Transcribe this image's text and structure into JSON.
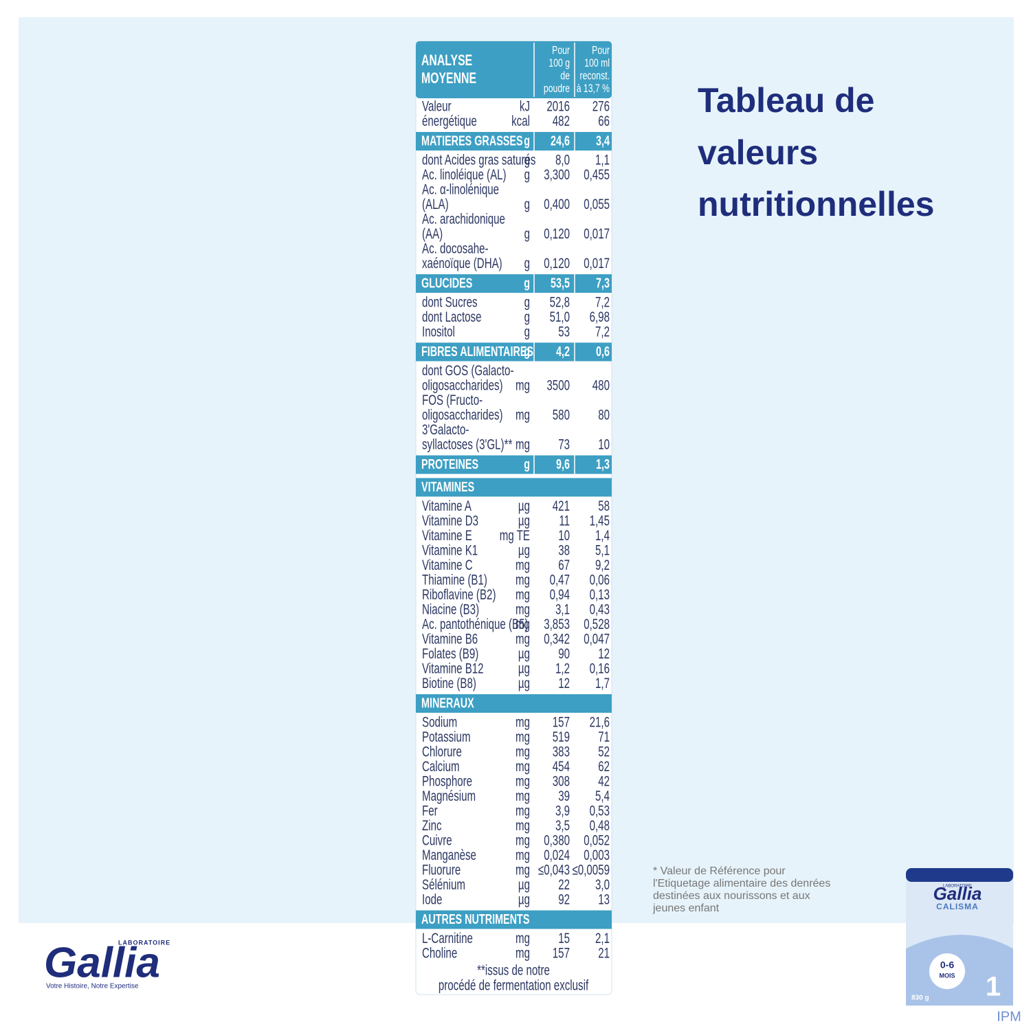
{
  "title": [
    "Tableau de",
    "valeurs",
    "nutritionnelles"
  ],
  "table": {
    "header": {
      "title": [
        "ANALYSE",
        "MOYENNE"
      ],
      "col1": [
        "Pour",
        "100 g",
        "de",
        "poudre"
      ],
      "col2": [
        "Pour",
        "100 ml",
        "reconst.",
        "à 13,7 %"
      ]
    },
    "sections": [
      {
        "rows": [
          {
            "label": [
              "Valeur"
            ],
            "unit": "kJ",
            "v1": "2016",
            "v2": "276"
          },
          {
            "label": [
              "énergétique"
            ],
            "unit": "kcal",
            "v1": "482",
            "v2": "66"
          }
        ]
      },
      {
        "heading": "MATIERES GRASSES",
        "unit": "g",
        "v1": "24,6",
        "v2": "3,4",
        "rows": [
          {
            "label": [
              "dont Acides gras saturés"
            ],
            "unit": "g",
            "v1": "8,0",
            "v2": "1,1"
          },
          {
            "label": [
              "Ac. linoléique (AL)"
            ],
            "unit": "g",
            "v1": "3,300",
            "v2": "0,455"
          },
          {
            "label": [
              "Ac. α-linolénique",
              "(ALA)"
            ],
            "unit": "g",
            "v1": "0,400",
            "v2": "0,055"
          },
          {
            "label": [
              "Ac. arachidonique",
              "(AA)"
            ],
            "unit": "g",
            "v1": "0,120",
            "v2": "0,017"
          },
          {
            "label": [
              "Ac. docosahe-",
              "xaénoïque (DHA)"
            ],
            "unit": "g",
            "v1": "0,120",
            "v2": "0,017"
          }
        ]
      },
      {
        "heading": "GLUCIDES",
        "unit": "g",
        "v1": "53,5",
        "v2": "7,3",
        "rows": [
          {
            "label": [
              "dont Sucres"
            ],
            "unit": "g",
            "v1": "52,8",
            "v2": "7,2"
          },
          {
            "label": [
              "dont Lactose"
            ],
            "unit": "g",
            "v1": "51,0",
            "v2": "6,98"
          },
          {
            "label": [
              "Inositol"
            ],
            "unit": "g",
            "v1": "53",
            "v2": "7,2"
          }
        ]
      },
      {
        "heading": "FIBRES ALIMENTAIRES",
        "unit": "g",
        "v1": "4,2",
        "v2": "0,6",
        "rows": [
          {
            "label": [
              "dont GOS (Galacto-",
              "oligosaccharides)"
            ],
            "unit": "mg",
            "v1": "3500",
            "v2": "480"
          },
          {
            "label": [
              "FOS (Fructo-",
              "oligosaccharides)"
            ],
            "unit": "mg",
            "v1": "580",
            "v2": "80"
          },
          {
            "label": [
              "3'Galacto-",
              "syllactoses (3'GL)**"
            ],
            "unit": "mg",
            "v1": "73",
            "v2": "10"
          }
        ]
      },
      {
        "heading": "PROTEINES",
        "unit": "g",
        "v1": "9,6",
        "v2": "1,3",
        "rows": []
      },
      {
        "heading": "VITAMINES",
        "rows": [
          {
            "label": [
              "Vitamine A"
            ],
            "unit": "µg",
            "v1": "421",
            "v2": "58"
          },
          {
            "label": [
              "Vitamine D3"
            ],
            "unit": "µg",
            "v1": "11",
            "v2": "1,45"
          },
          {
            "label": [
              "Vitamine E"
            ],
            "unit": "mg TE",
            "v1": "10",
            "v2": "1,4"
          },
          {
            "label": [
              "Vitamine K1"
            ],
            "unit": "µg",
            "v1": "38",
            "v2": "5,1"
          },
          {
            "label": [
              "Vitamine C"
            ],
            "unit": "mg",
            "v1": "67",
            "v2": "9,2"
          },
          {
            "label": [
              "Thiamine (B1)"
            ],
            "unit": "mg",
            "v1": "0,47",
            "v2": "0,06"
          },
          {
            "label": [
              "Riboflavine (B2)"
            ],
            "unit": "mg",
            "v1": "0,94",
            "v2": "0,13"
          },
          {
            "label": [
              "Niacine (B3)"
            ],
            "unit": "mg",
            "v1": "3,1",
            "v2": "0,43"
          },
          {
            "label": [
              "Ac. pantothénique (B5)"
            ],
            "unit": "mg",
            "v1": "3,853",
            "v2": "0,528"
          },
          {
            "label": [
              "Vitamine B6"
            ],
            "unit": "mg",
            "v1": "0,342",
            "v2": "0,047"
          },
          {
            "label": [
              "Folates (B9)"
            ],
            "unit": "µg",
            "v1": "90",
            "v2": "12"
          },
          {
            "label": [
              "Vitamine B12"
            ],
            "unit": "µg",
            "v1": "1,2",
            "v2": "0,16"
          },
          {
            "label": [
              "Biotine (B8)"
            ],
            "unit": "µg",
            "v1": "12",
            "v2": "1,7"
          }
        ]
      },
      {
        "heading": "MINERAUX",
        "rows": [
          {
            "label": [
              "Sodium"
            ],
            "unit": "mg",
            "v1": "157",
            "v2": "21,6"
          },
          {
            "label": [
              "Potassium"
            ],
            "unit": "mg",
            "v1": "519",
            "v2": "71"
          },
          {
            "label": [
              "Chlorure"
            ],
            "unit": "mg",
            "v1": "383",
            "v2": "52"
          },
          {
            "label": [
              "Calcium"
            ],
            "unit": "mg",
            "v1": "454",
            "v2": "62"
          },
          {
            "label": [
              "Phosphore"
            ],
            "unit": "mg",
            "v1": "308",
            "v2": "42"
          },
          {
            "label": [
              "Magnésium"
            ],
            "unit": "mg",
            "v1": "39",
            "v2": "5,4"
          },
          {
            "label": [
              "Fer"
            ],
            "unit": "mg",
            "v1": "3,9",
            "v2": "0,53"
          },
          {
            "label": [
              "Zinc"
            ],
            "unit": "mg",
            "v1": "3,5",
            "v2": "0,48"
          },
          {
            "label": [
              "Cuivre"
            ],
            "unit": "mg",
            "v1": "0,380",
            "v2": "0,052"
          },
          {
            "label": [
              "Manganèse"
            ],
            "unit": "mg",
            "v1": "0,024",
            "v2": "0,003"
          },
          {
            "label": [
              "Fluorure"
            ],
            "unit": "mg",
            "v1": "≤0,043",
            "v2": "≤0,0059"
          },
          {
            "label": [
              "Sélénium"
            ],
            "unit": "µg",
            "v1": "22",
            "v2": "3,0"
          },
          {
            "label": [
              "Iode"
            ],
            "unit": "µg",
            "v1": "92",
            "v2": "13"
          }
        ]
      },
      {
        "heading": "AUTRES NUTRIMENTS",
        "rows": [
          {
            "label": [
              "L-Carnitine"
            ],
            "unit": "mg",
            "v1": "15",
            "v2": "2,1"
          },
          {
            "label": [
              "Choline"
            ],
            "unit": "mg",
            "v1": "157",
            "v2": "21"
          }
        ]
      }
    ],
    "footnote": [
      "**issus de notre",
      "procédé de fermentation exclusif"
    ]
  },
  "reference_note": [
    "* Valeur de Référence pour",
    "l'Etiquetage alimentaire des denrées",
    "destinées aux nourissons et aux",
    "jeunes enfant"
  ],
  "logo": {
    "laboratoire": "LABORATOIRE",
    "brand": "Gallia",
    "tagline": "Votre Histoire, Notre Expertise"
  },
  "product": {
    "laboratoire": "LABORATOIRE",
    "brand": "Gallia",
    "name": "CALISMA",
    "age": "0-6",
    "age_unit": "MOIS",
    "stage": "1",
    "weight": "830 g"
  },
  "watermark": "IPM"
}
